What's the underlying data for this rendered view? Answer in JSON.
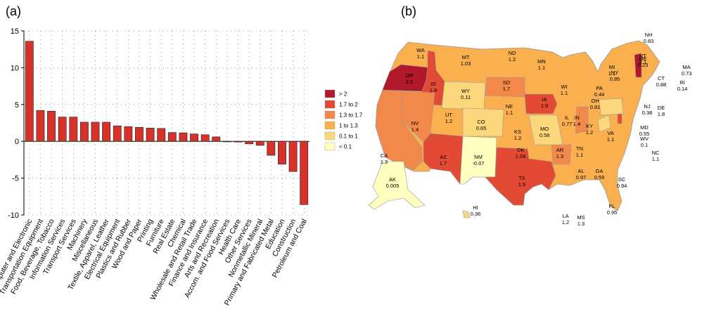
{
  "panels": {
    "a_label": "(a)",
    "b_label": "(b)"
  },
  "chart_data": [
    {
      "type": "bar",
      "title": "",
      "xlabel": "",
      "ylabel": "",
      "ylim": [
        -10,
        15
      ],
      "yticks": [
        -10,
        -5,
        0,
        5,
        10,
        15
      ],
      "grid": "dotted vertical and horizontal",
      "bar_color": "#d7322a",
      "categories": [
        "Computer and Electronic",
        "Transportation Equipment",
        "Food, Beverage, Tobacco",
        "Information Services",
        "Transport Services",
        "Machinery",
        "Miscellaneous",
        "Textile, Apparel, Leather",
        "Electrical Equipment",
        "Plastics and Rubber",
        "Wood and Paper",
        "Printing",
        "Furniture",
        "Real Estate",
        "Chemical",
        "Wholesale and Retail Trade",
        "Finance and Insurance",
        "Arts and Recreation",
        "Accom. and Food Services",
        "Health Care",
        "Other Services",
        "Nonmetallic Mineral",
        "Primary and Fabricated Metal",
        "Education",
        "Construction",
        "Petroleum and Coal"
      ],
      "values": [
        13.6,
        4.2,
        4.1,
        3.3,
        3.3,
        2.6,
        2.6,
        2.6,
        2.1,
        2.0,
        1.9,
        1.8,
        1.75,
        1.2,
        1.15,
        1.0,
        0.9,
        0.6,
        0.0,
        -0.1,
        -0.35,
        -0.55,
        -1.9,
        -3.1,
        -4.1,
        -8.6
      ]
    },
    {
      "type": "choropleth",
      "legend": {
        "placement": "left of map",
        "entries": [
          {
            "label": "> 2",
            "color": "#b2182b"
          },
          {
            "label": "1.7 to 2",
            "color": "#e34a33"
          },
          {
            "label": "1.3 to 1.7",
            "color": "#f2884a"
          },
          {
            "label": "1 to 1.3",
            "color": "#fbb050"
          },
          {
            "label": "0.1 to 1",
            "color": "#fdd77c"
          },
          {
            "label": "< 0.1",
            "color": "#ffffbf"
          }
        ]
      },
      "states": [
        {
          "abbr": "WA",
          "value": "1.1"
        },
        {
          "abbr": "OR",
          "value": "2.5"
        },
        {
          "abbr": "CA",
          "value": "1.3"
        },
        {
          "abbr": "NV",
          "value": "1.4"
        },
        {
          "abbr": "ID",
          "value": "1.9"
        },
        {
          "abbr": "MT",
          "value": "1.03"
        },
        {
          "abbr": "WY",
          "value": "0.11"
        },
        {
          "abbr": "UT",
          "value": "1.2"
        },
        {
          "abbr": "AZ",
          "value": "1.7"
        },
        {
          "abbr": "CO",
          "value": "0.65"
        },
        {
          "abbr": "NM",
          "value": "-0.07"
        },
        {
          "abbr": "ND",
          "value": "1.2"
        },
        {
          "abbr": "SD",
          "value": "1.7"
        },
        {
          "abbr": "NE",
          "value": "1.1"
        },
        {
          "abbr": "KS",
          "value": "1.2"
        },
        {
          "abbr": "OK",
          "value": "1.04"
        },
        {
          "abbr": "TX",
          "value": "1.9"
        },
        {
          "abbr": "MN",
          "value": "1.1"
        },
        {
          "abbr": "IA",
          "value": "1.9"
        },
        {
          "abbr": "MO",
          "value": "0.58"
        },
        {
          "abbr": "AR",
          "value": "1.3"
        },
        {
          "abbr": "LA",
          "value": "1.2"
        },
        {
          "abbr": "WI",
          "value": "1.1"
        },
        {
          "abbr": "IL",
          "value": "0.77"
        },
        {
          "abbr": "MI",
          "value": "1.1"
        },
        {
          "abbr": "IN",
          "value": "1.4"
        },
        {
          "abbr": "OH",
          "value": "0.81"
        },
        {
          "abbr": "KY",
          "value": "1.2"
        },
        {
          "abbr": "TN",
          "value": "1.1"
        },
        {
          "abbr": "MS",
          "value": "1.3"
        },
        {
          "abbr": "AL",
          "value": "0.97"
        },
        {
          "abbr": "GA",
          "value": "0.59"
        },
        {
          "abbr": "FL",
          "value": "0.95"
        },
        {
          "abbr": "SC",
          "value": "0.94"
        },
        {
          "abbr": "NC",
          "value": "1.1"
        },
        {
          "abbr": "VA",
          "value": "1.1"
        },
        {
          "abbr": "WV",
          "value": "0.1"
        },
        {
          "abbr": "MD",
          "value": "0.55"
        },
        {
          "abbr": "DE",
          "value": "1.8"
        },
        {
          "abbr": "NJ",
          "value": "0.38"
        },
        {
          "abbr": "PA",
          "value": "0.44"
        },
        {
          "abbr": "NY",
          "value": "0.85"
        },
        {
          "abbr": "CT",
          "value": "0.88"
        },
        {
          "abbr": "RI",
          "value": "0.14"
        },
        {
          "abbr": "MA",
          "value": "0.73"
        },
        {
          "abbr": "VT",
          "value": "2.1"
        },
        {
          "abbr": "NH",
          "value": "0.83"
        },
        {
          "abbr": "ME",
          "value": "0.23"
        },
        {
          "abbr": "AK",
          "value": "0.005"
        },
        {
          "abbr": "HI",
          "value": "0.36"
        }
      ]
    }
  ]
}
